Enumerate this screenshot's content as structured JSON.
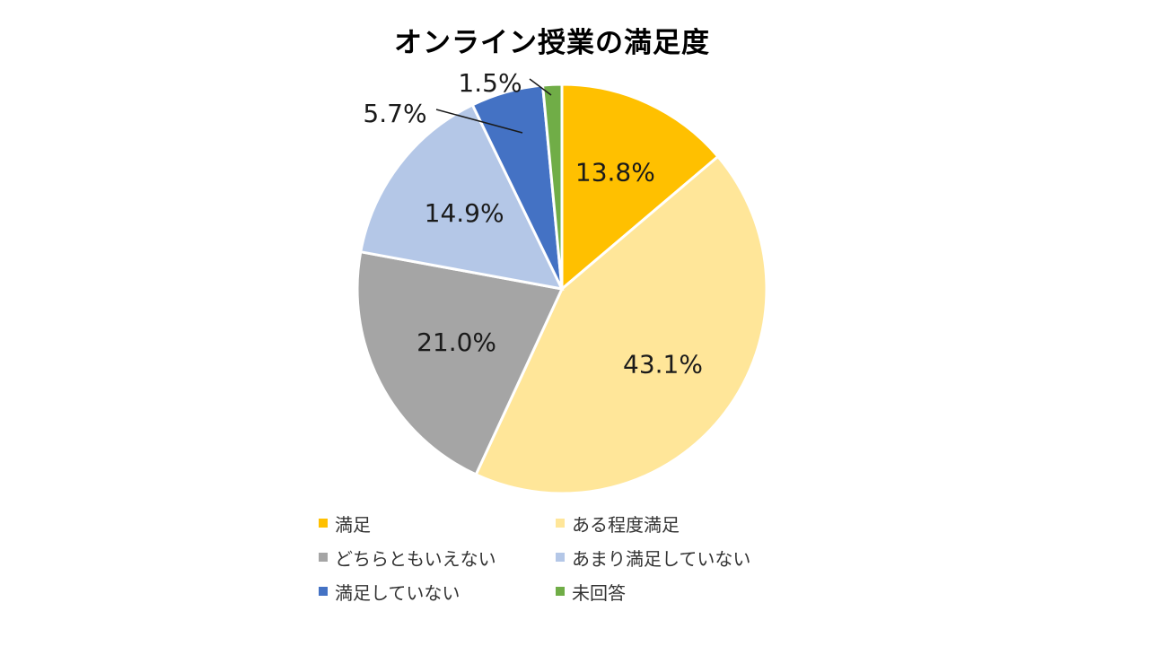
{
  "chart_data": {
    "type": "pie",
    "title": "オンライン授業の満足度",
    "start_angle_deg": 0,
    "direction": "clockwise",
    "legend_position": "bottom",
    "slices": [
      {
        "name": "満足",
        "value": 13.8,
        "label": "13.8%",
        "color": "#FFC000"
      },
      {
        "name": "ある程度満足",
        "value": 43.1,
        "label": "43.1%",
        "color": "#FFE699"
      },
      {
        "name": "どちらともいえない",
        "value": 21.0,
        "label": "21.0%",
        "color": "#A5A5A5"
      },
      {
        "name": "あまり満足していない",
        "value": 14.9,
        "label": "14.9%",
        "color": "#B4C7E7"
      },
      {
        "name": "満足していない",
        "value": 5.7,
        "label": "5.7%",
        "color": "#4472C4"
      },
      {
        "name": "未回答",
        "value": 1.5,
        "label": "1.5%",
        "color": "#70AD47"
      }
    ]
  }
}
